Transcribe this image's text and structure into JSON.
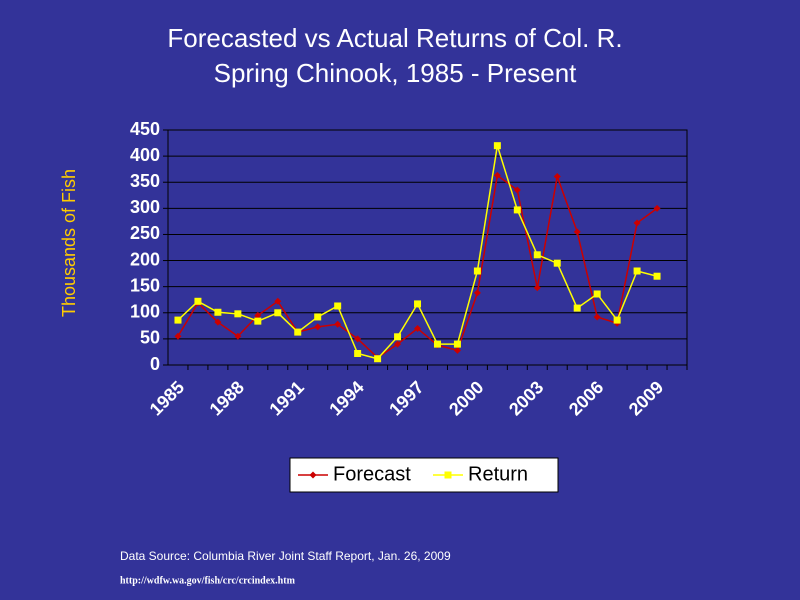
{
  "chart_data": {
    "type": "line",
    "title": "Forecasted vs Actual Returns of Col. R.",
    "subtitle": "Spring Chinook, 1985 - Present",
    "y_label": "Thousands of Fish",
    "categories": [
      "1985",
      null,
      null,
      "1988",
      null,
      null,
      "1991",
      null,
      null,
      "1994",
      null,
      null,
      "1997",
      null,
      null,
      "2000",
      null,
      null,
      "2003",
      null,
      null,
      "2006",
      null,
      null,
      "2009",
      null
    ],
    "series": [
      {
        "name": "Forecast",
        "color": "#cc0000",
        "marker": "diamond",
        "values": [
          55,
          119,
          82,
          55,
          95,
          122,
          63,
          73,
          78,
          50,
          14,
          40,
          70,
          38,
          28,
          138,
          363,
          335,
          148,
          361,
          255,
          92,
          80,
          272,
          300,
          null
        ]
      },
      {
        "name": "Return",
        "color": "#ffff00",
        "marker": "square",
        "values": [
          86,
          122,
          101,
          98,
          84,
          100,
          63,
          92,
          113,
          22,
          12,
          54,
          117,
          40,
          40,
          180,
          420,
          297,
          211,
          195,
          109,
          136,
          86,
          180,
          170,
          null
        ]
      }
    ],
    "ylim": [
      0,
      450
    ],
    "yticks": [
      0,
      50,
      100,
      150,
      200,
      250,
      300,
      350,
      400,
      450
    ],
    "grid": true,
    "source": "Data Source:  Columbia River Joint Staff Report, Jan. 26, 2009",
    "url": "http://wdfw.wa.gov/fish/crc/crcindex.htm"
  }
}
